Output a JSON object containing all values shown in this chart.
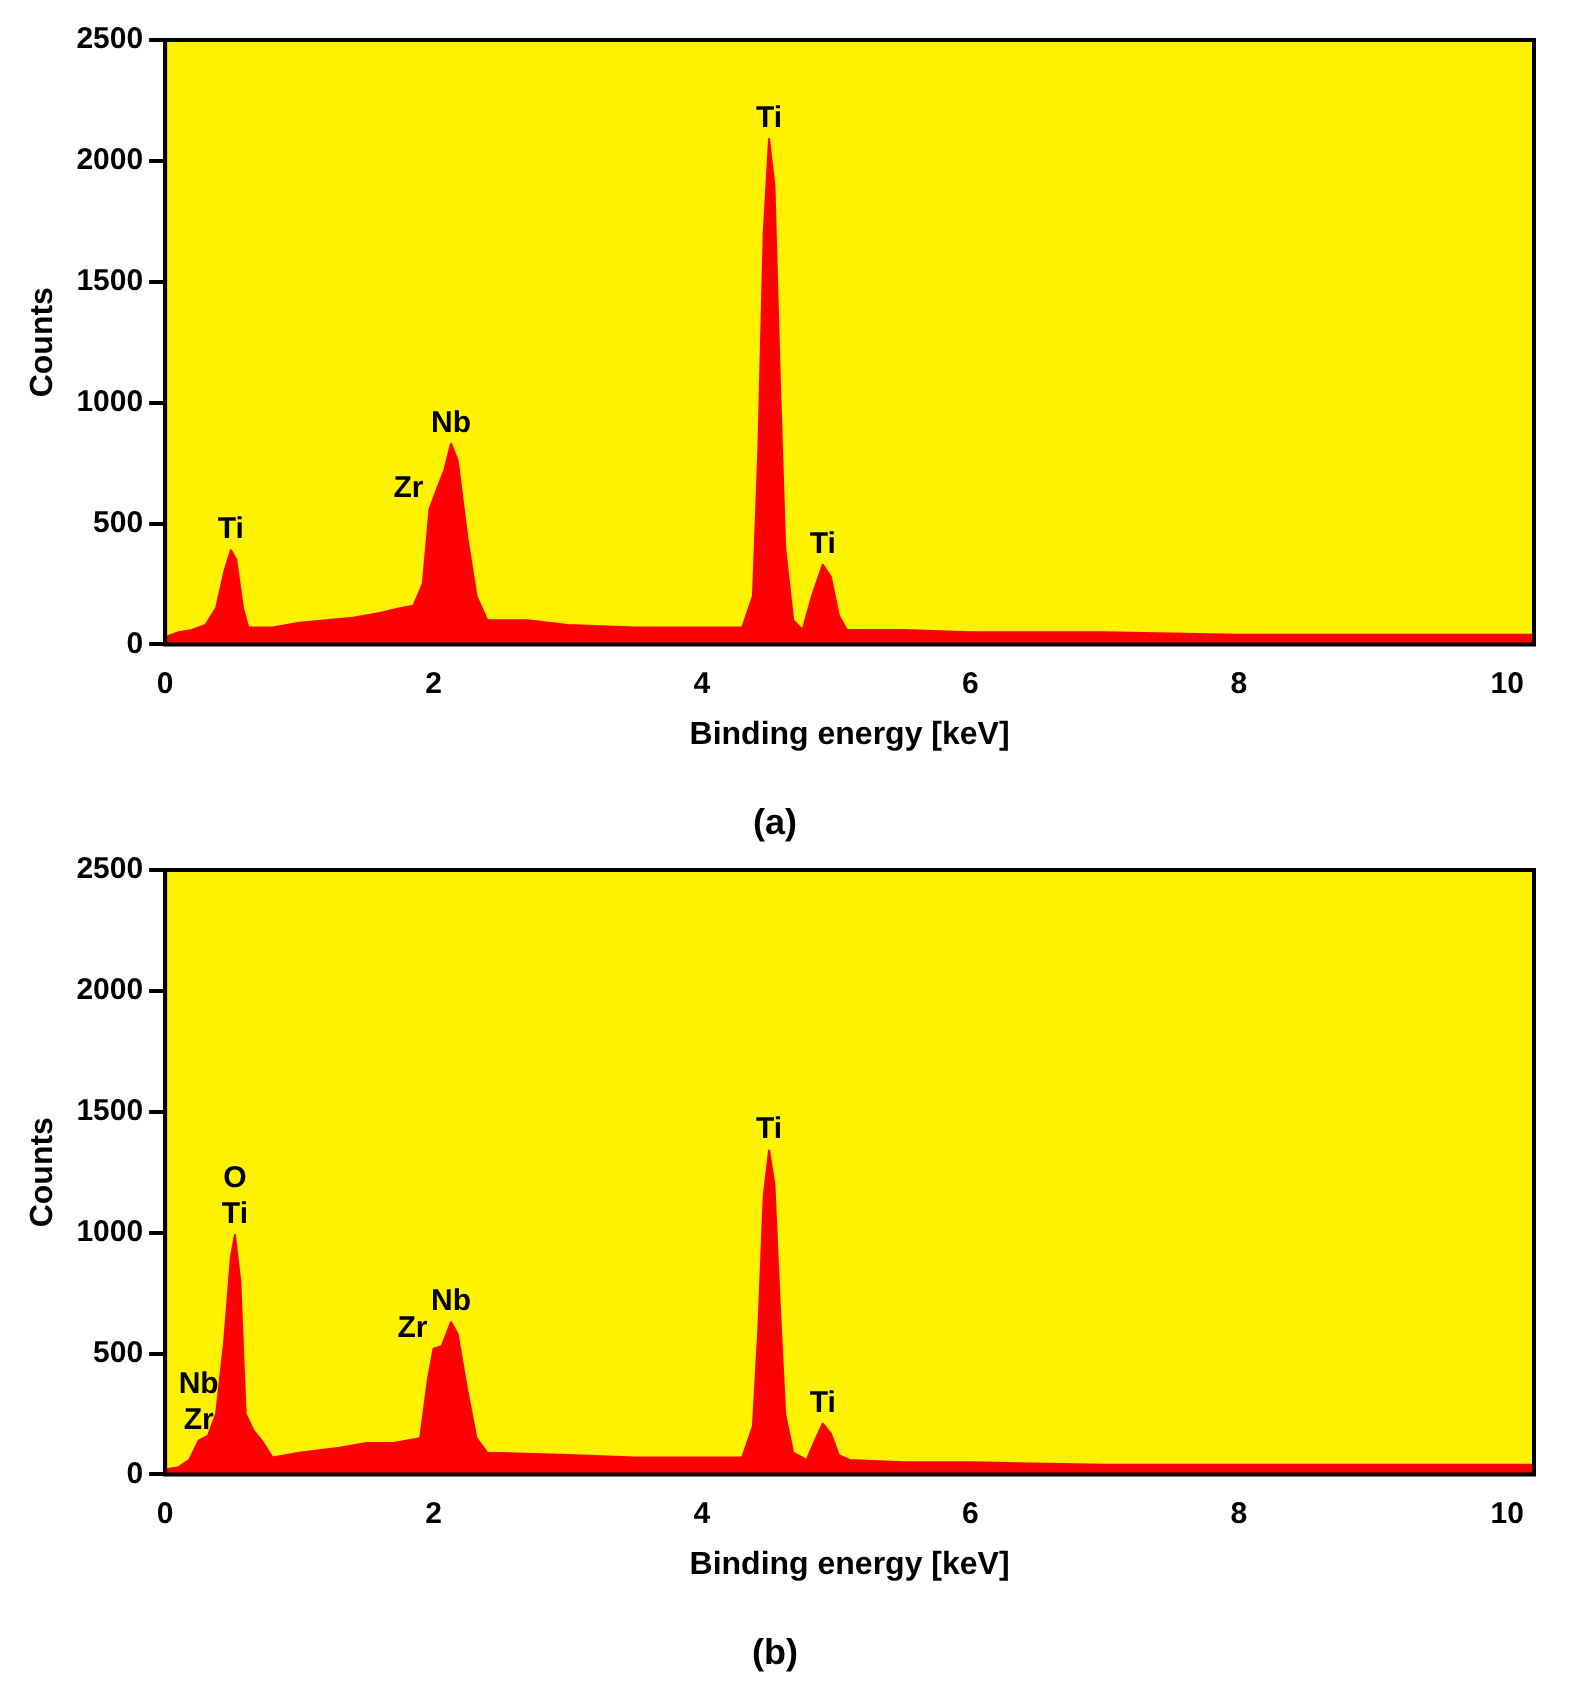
{
  "chart_data": [
    {
      "type": "area",
      "title": "(a)",
      "xlabel": "Binding energy [keV]",
      "ylabel": "Counts",
      "xlim": [
        0,
        10.2
      ],
      "xticks": [
        0,
        2,
        4,
        6,
        8,
        10
      ],
      "ylim": [
        0,
        2500
      ],
      "yticks": [
        0,
        500,
        1000,
        1500,
        2000,
        2500
      ],
      "grid": false,
      "legend": false,
      "series": [
        {
          "color": "#ff0000",
          "x": [
            0,
            0.1,
            0.2,
            0.3,
            0.38,
            0.44,
            0.49,
            0.53,
            0.58,
            0.62,
            0.8,
            1.0,
            1.2,
            1.4,
            1.6,
            1.75,
            1.85,
            1.92,
            1.97,
            2.03,
            2.08,
            2.13,
            2.18,
            2.25,
            2.32,
            2.4,
            2.7,
            3.0,
            3.5,
            4.0,
            4.3,
            4.38,
            4.42,
            4.46,
            4.5,
            4.54,
            4.58,
            4.62,
            4.68,
            4.75,
            4.82,
            4.9,
            4.96,
            5.02,
            5.08,
            5.5,
            6,
            7,
            8,
            9,
            10.2
          ],
          "values": [
            30,
            50,
            60,
            80,
            150,
            300,
            390,
            350,
            150,
            70,
            70,
            90,
            100,
            110,
            130,
            150,
            160,
            250,
            560,
            650,
            720,
            830,
            760,
            450,
            200,
            100,
            100,
            80,
            70,
            70,
            70,
            200,
            800,
            1700,
            2090,
            1900,
            1100,
            400,
            100,
            60,
            200,
            330,
            280,
            120,
            60,
            60,
            50,
            50,
            40,
            40,
            40
          ]
        }
      ],
      "annotations": [
        {
          "text": "Ti",
          "x": 0.49,
          "y": 390
        },
        {
          "text": "Zr",
          "x": 1.97,
          "y": 560
        },
        {
          "text": "Nb",
          "x": 2.13,
          "y": 830
        },
        {
          "text": "Ti",
          "x": 4.5,
          "y": 2090
        },
        {
          "text": "Ti",
          "x": 4.9,
          "y": 330
        }
      ]
    },
    {
      "type": "area",
      "title": "(b)",
      "xlabel": "Binding energy [keV]",
      "ylabel": "Counts",
      "xlim": [
        0,
        10.2
      ],
      "xticks": [
        0,
        2,
        4,
        6,
        8,
        10
      ],
      "ylim": [
        0,
        2500
      ],
      "yticks": [
        0,
        500,
        1000,
        1500,
        2000,
        2500
      ],
      "grid": false,
      "legend": false,
      "series": [
        {
          "color": "#ff0000",
          "x": [
            0,
            0.1,
            0.18,
            0.25,
            0.32,
            0.38,
            0.44,
            0.49,
            0.52,
            0.56,
            0.6,
            0.66,
            0.72,
            0.8,
            1.0,
            1.3,
            1.5,
            1.7,
            1.9,
            1.96,
            2.0,
            2.06,
            2.13,
            2.18,
            2.25,
            2.32,
            2.4,
            3,
            3.5,
            4.0,
            4.3,
            4.38,
            4.42,
            4.46,
            4.5,
            4.54,
            4.58,
            4.62,
            4.68,
            4.78,
            4.85,
            4.9,
            4.96,
            5.02,
            5.1,
            5.5,
            6,
            7,
            8,
            9,
            10.2
          ],
          "values": [
            20,
            30,
            60,
            140,
            160,
            250,
            550,
            900,
            990,
            800,
            250,
            180,
            140,
            70,
            90,
            110,
            130,
            130,
            150,
            400,
            520,
            530,
            630,
            580,
            350,
            150,
            90,
            80,
            70,
            70,
            70,
            200,
            600,
            1150,
            1340,
            1200,
            700,
            250,
            90,
            60,
            150,
            210,
            170,
            80,
            60,
            50,
            50,
            40,
            40,
            40,
            40
          ]
        }
      ],
      "annotations": [
        {
          "text": "Nb",
          "x": 0.25,
          "y": 140
        },
        {
          "text": "Zr",
          "x": 0.25,
          "y": 140
        },
        {
          "text": "O",
          "x": 0.52,
          "y": 990
        },
        {
          "text": "Ti",
          "x": 0.52,
          "y": 990
        },
        {
          "text": "Zr",
          "x": 2.0,
          "y": 520
        },
        {
          "text": "Nb",
          "x": 2.13,
          "y": 630
        },
        {
          "text": "Ti",
          "x": 4.5,
          "y": 1340
        },
        {
          "text": "Ti",
          "x": 4.9,
          "y": 210
        }
      ]
    }
  ]
}
